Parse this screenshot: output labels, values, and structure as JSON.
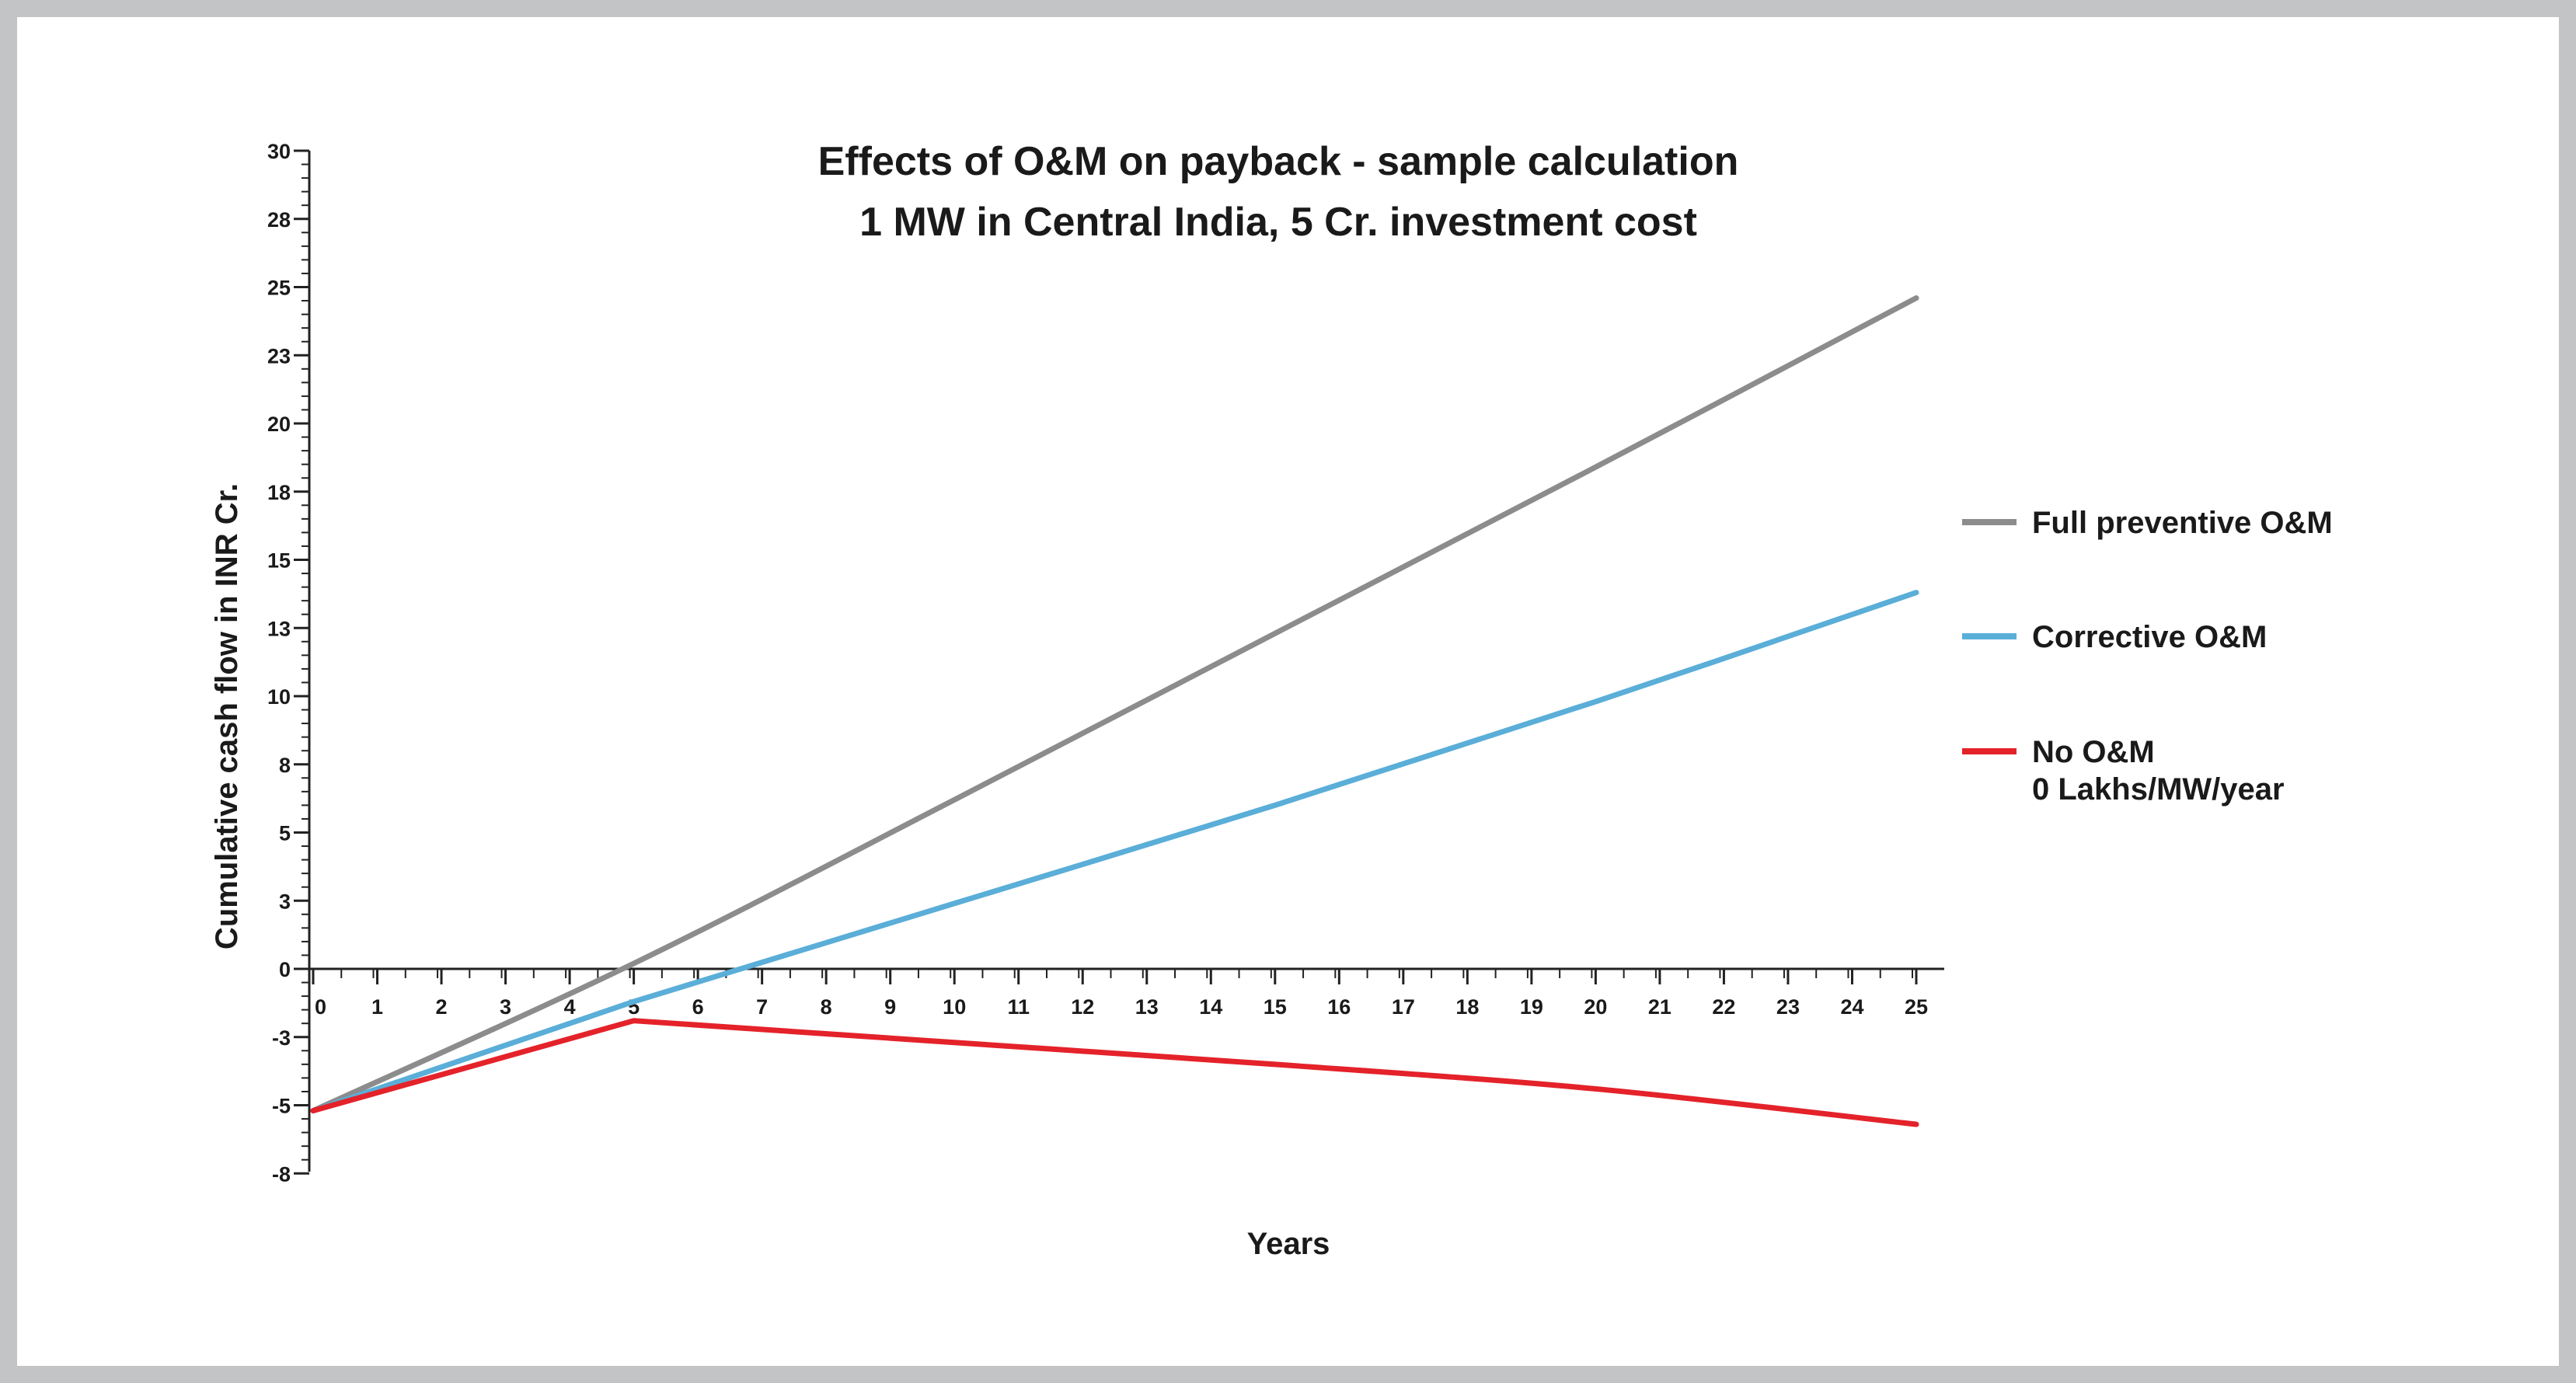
{
  "chart_data": {
    "type": "line",
    "title": "Effects of O&M on payback - sample calculation",
    "subtitle": "1 MW in Central India, 5 Cr. investment cost",
    "xlabel": "Years",
    "ylabel": "Cumulative cash flow in INR Cr.",
    "x": [
      0,
      5,
      10,
      15,
      20,
      25
    ],
    "xlim": [
      0,
      25
    ],
    "ylim": [
      -8,
      30
    ],
    "x_ticks": [
      "0",
      "1",
      "2",
      "3",
      "4",
      "5",
      "6",
      "7",
      "8",
      "9",
      "10",
      "11",
      "12",
      "13",
      "14",
      "15",
      "16",
      "17",
      "18",
      "19",
      "20",
      "21",
      "22",
      "23",
      "24",
      "25"
    ],
    "y_ticks": [
      {
        "label": "30",
        "value": 30
      },
      {
        "label": "28",
        "value": 27.5
      },
      {
        "label": "25",
        "value": 25
      },
      {
        "label": "23",
        "value": 22.5
      },
      {
        "label": "20",
        "value": 20
      },
      {
        "label": "18",
        "value": 17.5
      },
      {
        "label": "15",
        "value": 15
      },
      {
        "label": "13",
        "value": 12.5
      },
      {
        "label": "10",
        "value": 10
      },
      {
        "label": "8",
        "value": 7.5
      },
      {
        "label": "5",
        "value": 5
      },
      {
        "label": "3",
        "value": 2.5
      },
      {
        "label": "0",
        "value": 0
      },
      {
        "label": "-3",
        "value": -2.5
      },
      {
        "label": "-5",
        "value": -5
      },
      {
        "label": "-8",
        "value": -7.5
      }
    ],
    "grid": false,
    "legend_position": "right",
    "series": [
      {
        "name": "Full preventive O&M",
        "color": "#8c8c8c",
        "values": [
          -5.2,
          0.2,
          6.2,
          12.3,
          18.4,
          24.6
        ]
      },
      {
        "name": "Corrective O&M",
        "color": "#5aaed8",
        "values": [
          -5.2,
          -1.2,
          2.4,
          6.0,
          9.8,
          13.8
        ]
      },
      {
        "name": "No O&M",
        "name_line2": "0 Lakhs/MW/year",
        "color": "#e4222a",
        "values": [
          -5.2,
          -1.9,
          -2.7,
          -3.5,
          -4.4,
          -5.7
        ]
      }
    ]
  }
}
